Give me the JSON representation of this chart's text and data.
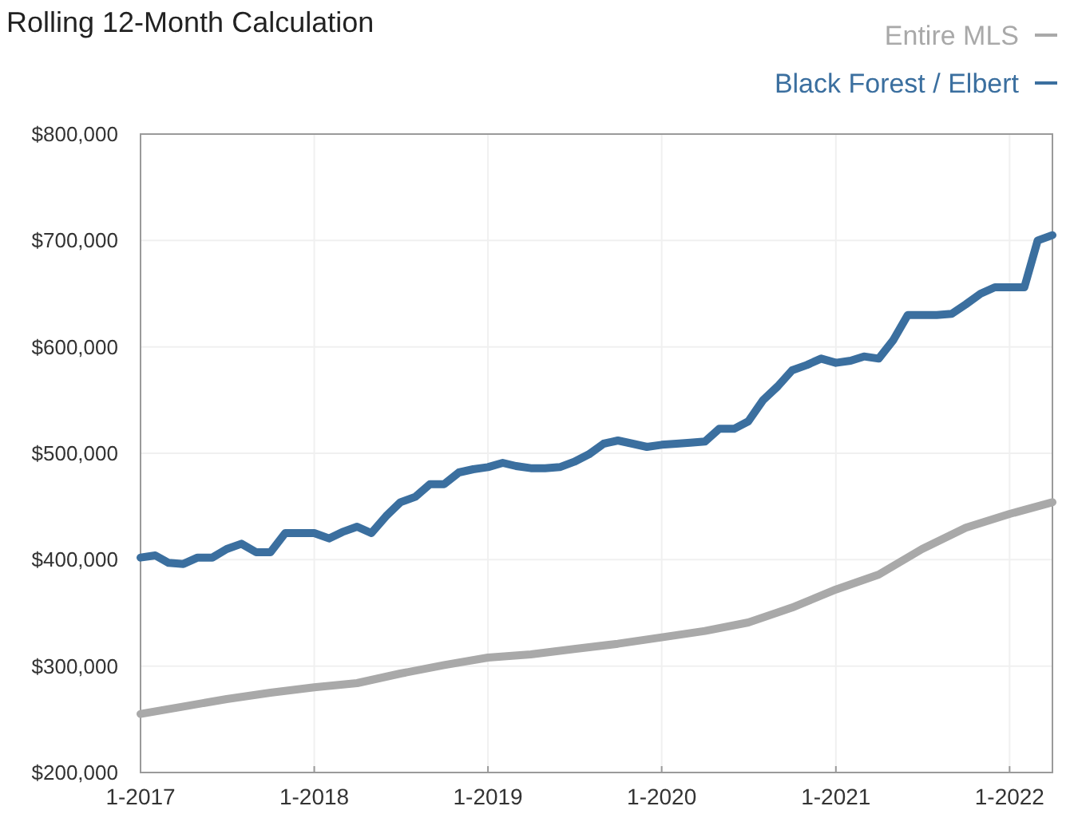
{
  "chart_data": {
    "type": "line",
    "title": "Rolling 12-Month Calculation",
    "x": [
      "2017-01",
      "2017-02",
      "2017-03",
      "2017-04",
      "2017-05",
      "2017-06",
      "2017-07",
      "2017-08",
      "2017-09",
      "2017-10",
      "2017-11",
      "2017-12",
      "2018-01",
      "2018-02",
      "2018-03",
      "2018-04",
      "2018-05",
      "2018-06",
      "2018-07",
      "2018-08",
      "2018-09",
      "2018-10",
      "2018-11",
      "2018-12",
      "2019-01",
      "2019-02",
      "2019-03",
      "2019-04",
      "2019-05",
      "2019-06",
      "2019-07",
      "2019-08",
      "2019-09",
      "2019-10",
      "2019-11",
      "2019-12",
      "2020-01",
      "2020-02",
      "2020-03",
      "2020-04",
      "2020-05",
      "2020-06",
      "2020-07",
      "2020-08",
      "2020-09",
      "2020-10",
      "2020-11",
      "2020-12",
      "2021-01",
      "2021-02",
      "2021-03",
      "2021-04",
      "2021-05",
      "2021-06",
      "2021-07",
      "2021-08",
      "2021-09",
      "2021-10",
      "2021-11",
      "2021-12",
      "2022-01",
      "2022-02",
      "2022-03",
      "2022-04"
    ],
    "series": [
      {
        "name": "Entire MLS",
        "color": "#a9a9a9",
        "x": [
          "2017-01",
          "2017-04",
          "2017-07",
          "2017-10",
          "2018-01",
          "2018-04",
          "2018-07",
          "2018-10",
          "2019-01",
          "2019-04",
          "2019-07",
          "2019-10",
          "2020-01",
          "2020-04",
          "2020-07",
          "2020-10",
          "2021-01",
          "2021-04",
          "2021-07",
          "2021-10",
          "2022-01",
          "2022-04"
        ],
        "values": [
          255000,
          262000,
          269000,
          275000,
          280000,
          284000,
          293000,
          301000,
          308000,
          311000,
          316000,
          321000,
          327000,
          333000,
          341000,
          355000,
          372000,
          386000,
          410000,
          430000,
          443000,
          454000
        ]
      },
      {
        "name": "Black Forest / Elbert",
        "color": "#3b6f9f",
        "values": [
          402000,
          404000,
          397000,
          396000,
          402000,
          402000,
          410000,
          415000,
          407000,
          407000,
          425000,
          425000,
          425000,
          420000,
          426000,
          431000,
          425000,
          441000,
          454000,
          459000,
          471000,
          471000,
          482000,
          485000,
          487000,
          491000,
          488000,
          486000,
          486000,
          487000,
          492000,
          499000,
          509000,
          512000,
          509000,
          506000,
          508000,
          509000,
          510000,
          511000,
          523000,
          523000,
          530000,
          550000,
          563000,
          578000,
          583000,
          589000,
          585000,
          587000,
          591000,
          589000,
          606000,
          630000,
          630000,
          630000,
          631000,
          640000,
          650000,
          656000,
          656000,
          656000,
          700000,
          705000
        ]
      }
    ],
    "xlim": [
      "2017-01",
      "2022-04"
    ],
    "xticks": [
      {
        "value": "2017-01",
        "label": "1-2017"
      },
      {
        "value": "2018-01",
        "label": "1-2018"
      },
      {
        "value": "2019-01",
        "label": "1-2019"
      },
      {
        "value": "2020-01",
        "label": "1-2020"
      },
      {
        "value": "2021-01",
        "label": "1-2021"
      },
      {
        "value": "2022-01",
        "label": "1-2022"
      }
    ],
    "ylim": [
      200000,
      800000
    ],
    "yticks": [
      {
        "value": 200000,
        "label": "$200,000"
      },
      {
        "value": 300000,
        "label": "$300,000"
      },
      {
        "value": 400000,
        "label": "$400,000"
      },
      {
        "value": 500000,
        "label": "$500,000"
      },
      {
        "value": 600000,
        "label": "$600,000"
      },
      {
        "value": 700000,
        "label": "$700,000"
      },
      {
        "value": 800000,
        "label": "$800,000"
      }
    ],
    "grid": true,
    "legend": "top right"
  }
}
